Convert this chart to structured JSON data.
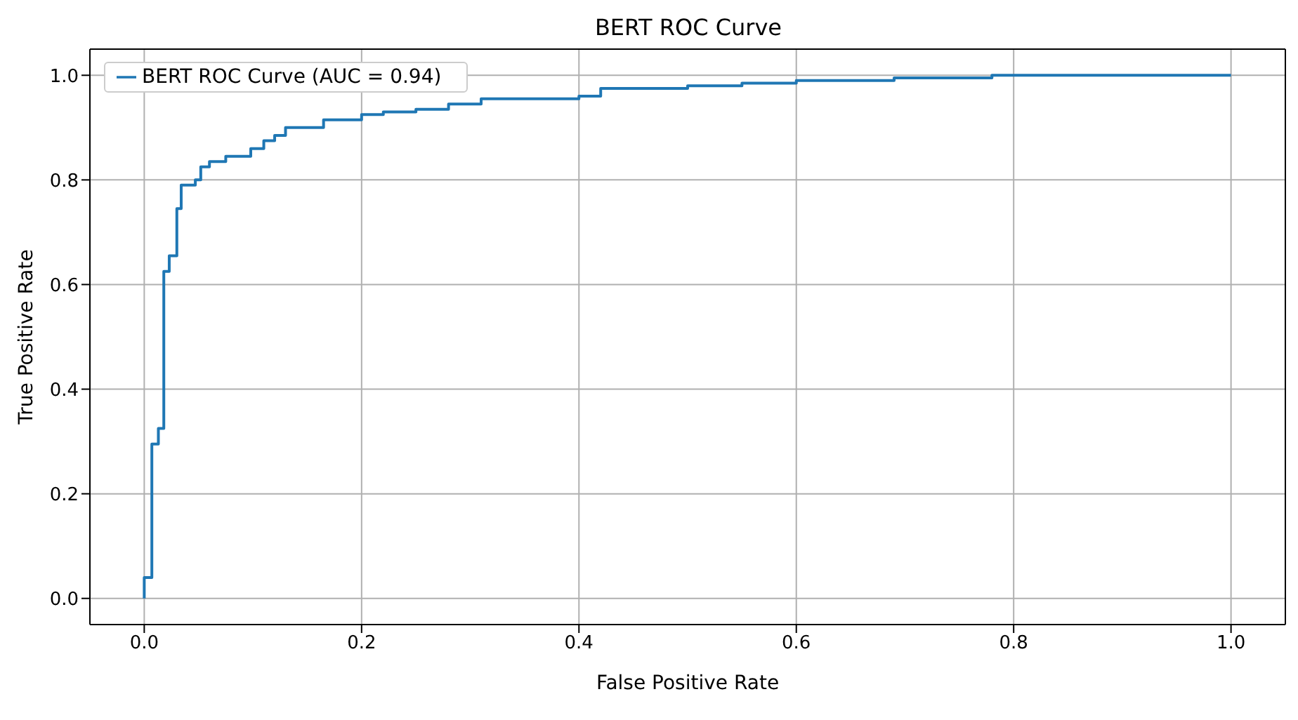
{
  "chart_data": {
    "type": "step",
    "title": "BERT ROC Curve",
    "xlabel": "False Positive Rate",
    "ylabel": "True Positive Rate",
    "xlim": [
      -0.05,
      1.05
    ],
    "ylim": [
      -0.05,
      1.05
    ],
    "xticks": [
      {
        "value": 0,
        "label": "0.0"
      },
      {
        "value": 0.2,
        "label": "0.2"
      },
      {
        "value": 0.4,
        "label": "0.4"
      },
      {
        "value": 0.6,
        "label": "0.6"
      },
      {
        "value": 0.8,
        "label": "0.8"
      },
      {
        "value": 1,
        "label": "1.0"
      }
    ],
    "yticks": [
      {
        "value": 0,
        "label": "0.0"
      },
      {
        "value": 0.2,
        "label": "0.2"
      },
      {
        "value": 0.4,
        "label": "0.4"
      },
      {
        "value": 0.6,
        "label": "0.6"
      },
      {
        "value": 0.8,
        "label": "0.8"
      },
      {
        "value": 1,
        "label": "1.0"
      }
    ],
    "grid": true,
    "legend": "top left",
    "series": [
      {
        "name": "BERT ROC Curve (AUC = 0.94)",
        "color": "#1f77b4",
        "x": [
          0,
          0,
          0.007,
          0.013,
          0.018,
          0.023,
          0.03,
          0.034,
          0.047,
          0.052,
          0.06,
          0.075,
          0.098,
          0.11,
          0.12,
          0.13,
          0.165,
          0.2,
          0.22,
          0.25,
          0.28,
          0.31,
          0.4,
          0.42,
          0.5,
          0.55,
          0.6,
          0.69,
          0.78,
          1.0
        ],
        "values": [
          0,
          0.04,
          0.295,
          0.325,
          0.625,
          0.655,
          0.745,
          0.79,
          0.8,
          0.825,
          0.835,
          0.845,
          0.86,
          0.875,
          0.885,
          0.9,
          0.915,
          0.925,
          0.93,
          0.935,
          0.945,
          0.955,
          0.96,
          0.975,
          0.98,
          0.985,
          0.99,
          0.995,
          1.0,
          1.0
        ]
      }
    ]
  }
}
